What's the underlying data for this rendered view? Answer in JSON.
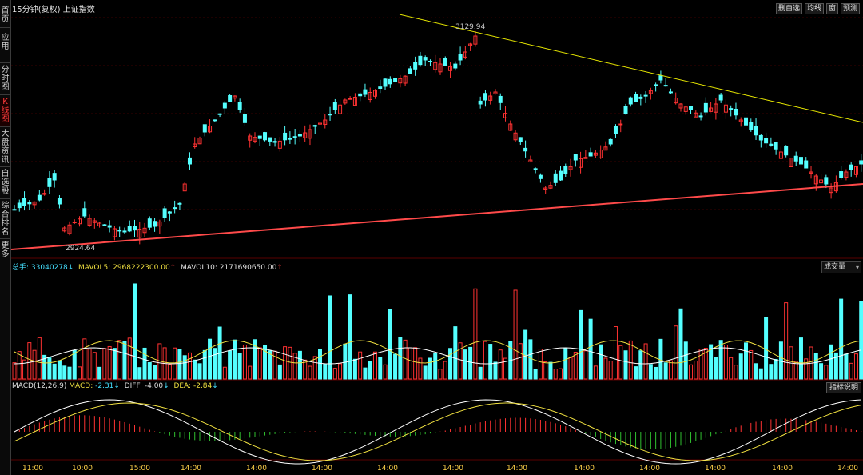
{
  "title": "15分钟(复权)  上证指数",
  "sidebar": {
    "items": [
      {
        "label": "首页"
      },
      {
        "label": "应用"
      },
      {
        "label": "分时图"
      },
      {
        "label": "K线图"
      },
      {
        "label": "大盘资讯"
      },
      {
        "label": "自选股"
      },
      {
        "label": "综合排名"
      },
      {
        "label": "更多"
      }
    ]
  },
  "top_buttons": [
    "删自选",
    "均线",
    "窗",
    "预测"
  ],
  "price_annotations": {
    "high": "3129.94",
    "low": "2924.64"
  },
  "volume": {
    "total_label": "总手:",
    "total_value": "33040278",
    "mavol5_label": "MAVOL5:",
    "mavol5_value": "2968222300.00",
    "mavol10_label": "MAVOL10:",
    "mavol10_value": "2171690650.00",
    "selector": "成交量"
  },
  "macd": {
    "name": "MACD(12,26,9)",
    "macd_label": "MACD:",
    "macd_value": "-2.31",
    "diff_label": "DIFF:",
    "diff_value": "-4.00",
    "dea_label": "DEA:",
    "dea_value": "-2.84",
    "help_button": "指标说明"
  },
  "time_axis": [
    "11:00",
    "10:00",
    "15:00",
    "14:00",
    "14:00",
    "14:00",
    "14:00",
    "14:00",
    "14:00",
    "14:00",
    "14:00",
    "14:00",
    "14:00",
    "14:00"
  ],
  "colors": {
    "up": "#ff3232",
    "down": "#54ffff",
    "trendline_upper": "#e6e600",
    "trendline_lower": "#ff4a4a",
    "ma_white": "#ffffff",
    "ma_yellow": "#f0e040"
  }
}
